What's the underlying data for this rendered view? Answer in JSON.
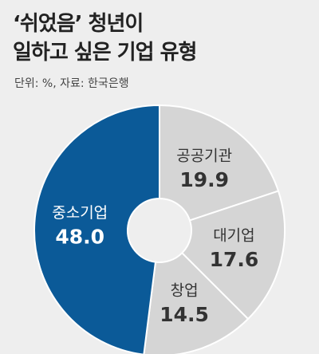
{
  "chart_data": {
    "type": "donut",
    "title": "‘쉬었음’ 청년이\n일하고 싶은 기업 유형",
    "subtitle": "단위: %, 자료: 한국은행",
    "categories": [
      "공공기관",
      "대기업",
      "창업",
      "중소기업"
    ],
    "values": [
      19.9,
      17.6,
      14.5,
      48.0
    ],
    "value_labels": [
      "19.9",
      "17.6",
      "14.5",
      "48.0"
    ],
    "colors": [
      "#d5d5d5",
      "#d5d5d5",
      "#d5d5d5",
      "#0b5a98"
    ],
    "label_colors": [
      "#333333",
      "#333333",
      "#333333",
      "#ffffff"
    ]
  }
}
